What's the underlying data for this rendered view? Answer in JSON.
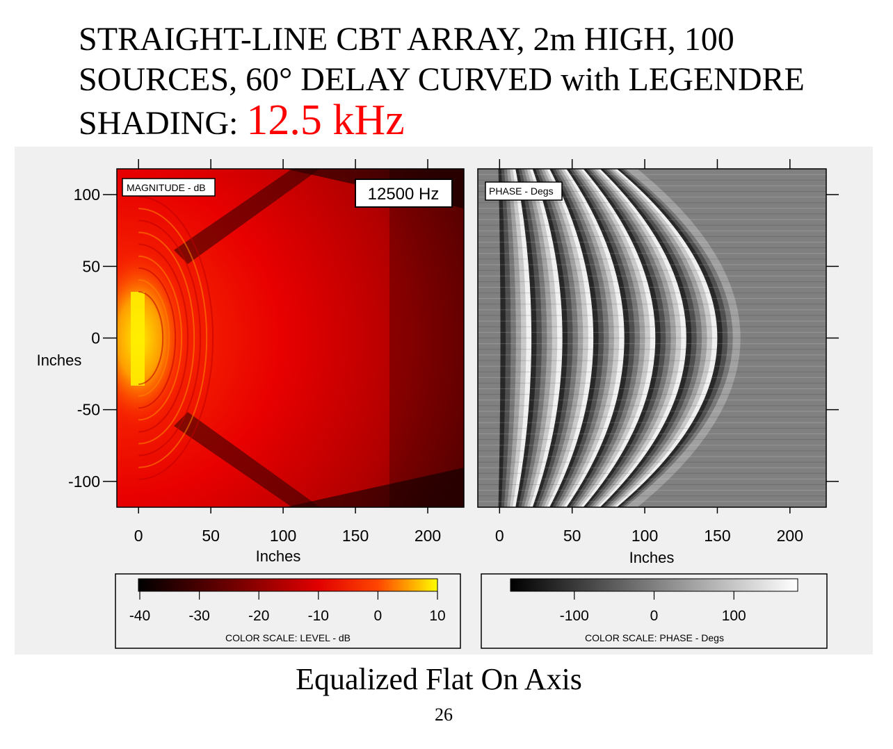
{
  "slide": {
    "title_main": "STRAIGHT-LINE CBT ARRAY, 2m HIGH, 100 SOURCES, 60° DELAY CURVED with LEGENDRE SHADING: ",
    "title_freq": "12.5 kHz",
    "caption": "Equalized Flat On Axis",
    "page_number": "26"
  },
  "chart_data": [
    {
      "type": "heatmap",
      "title": "MAGNITUDE - dB",
      "annotation": "12500 Hz",
      "xlabel": "Inches",
      "ylabel": "Inches",
      "xlim": [
        -15,
        225
      ],
      "ylim": [
        -118,
        118
      ],
      "xticks": [
        0,
        50,
        100,
        150,
        200
      ],
      "yticks": [
        100,
        50,
        0,
        -50,
        -100
      ],
      "colorbar": {
        "label": "COLOR SCALE: LEVEL - dB",
        "range": [
          -40,
          10
        ],
        "ticks": [
          -40,
          -30,
          -20,
          -10,
          0,
          10
        ],
        "colormap": "hot"
      }
    },
    {
      "type": "heatmap",
      "title": "PHASE - Degs",
      "xlabel": "Inches",
      "xlim": [
        -15,
        225
      ],
      "ylim": [
        -118,
        118
      ],
      "xticks": [
        0,
        50,
        100,
        150,
        200
      ],
      "colorbar": {
        "label": "COLOR SCALE: PHASE - Degs",
        "range": [
          -180,
          180
        ],
        "ticks": [
          -100,
          0,
          100
        ],
        "colormap": "gray"
      }
    }
  ]
}
